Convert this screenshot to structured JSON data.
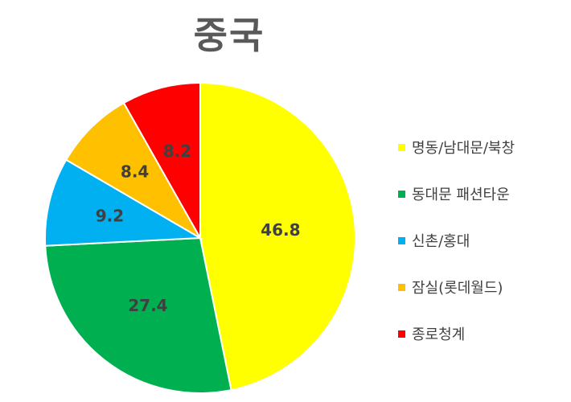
{
  "chart_data": {
    "type": "pie",
    "title": "중국",
    "categories": [
      "명동/남대문/북창",
      "동대문 패션타운",
      "신촌/홍대",
      "잠실(롯데월드)",
      "종로청계"
    ],
    "values": [
      46.8,
      27.4,
      9.2,
      8.4,
      8.2
    ],
    "colors": [
      "#FFFF00",
      "#00B050",
      "#00B0F0",
      "#FFC000",
      "#FF0000"
    ],
    "data_labels": [
      "46.8",
      "27.4",
      "9.2",
      "8.4",
      "8.2"
    ],
    "legend_position": "right",
    "start_angle": "12 o'clock",
    "direction": "clockwise"
  }
}
